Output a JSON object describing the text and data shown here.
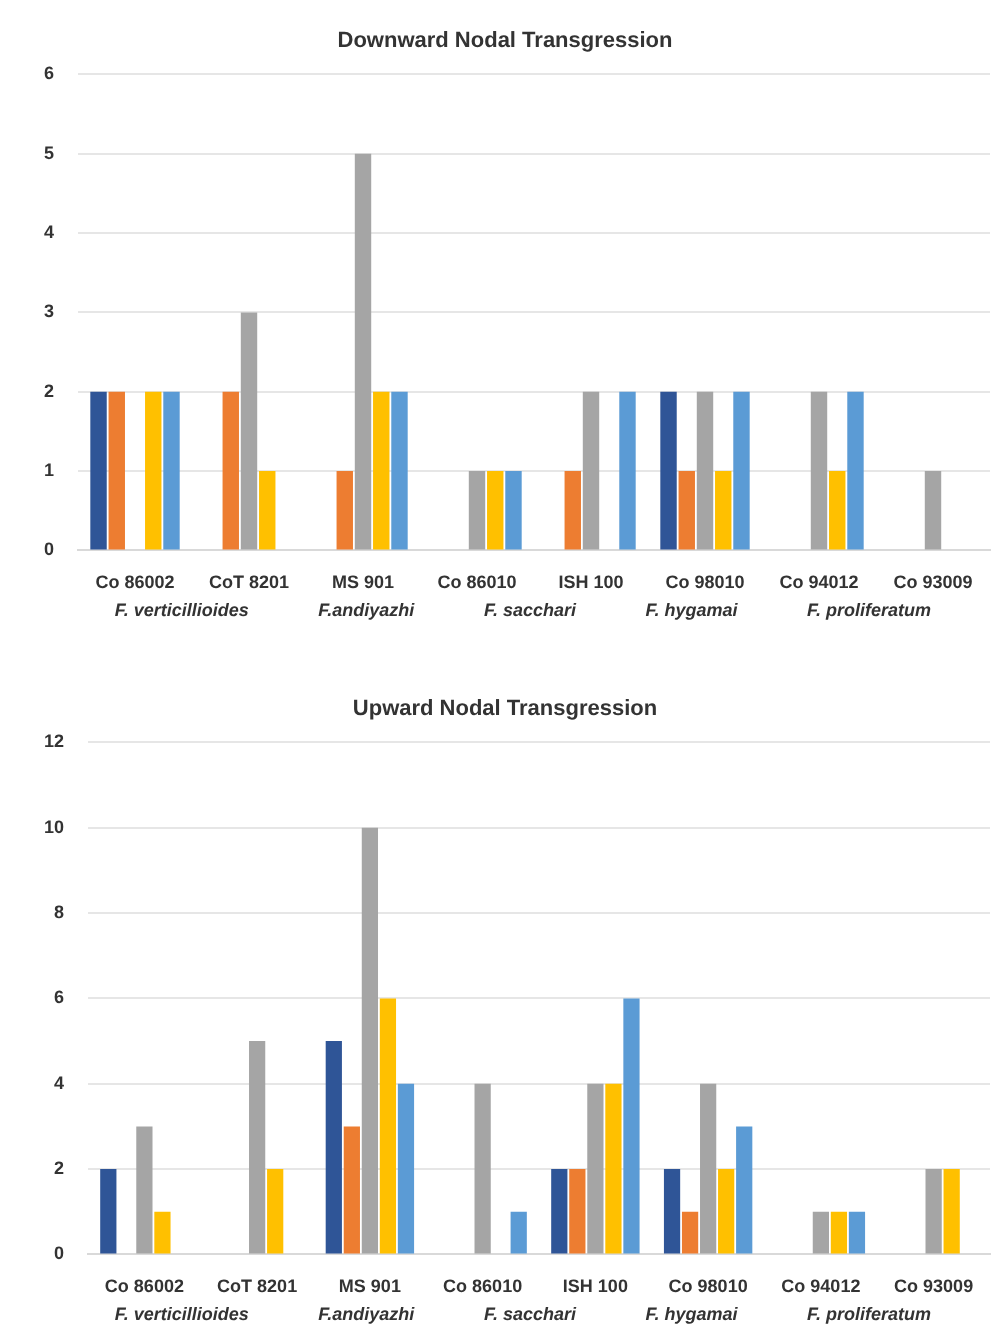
{
  "chart_data": [
    {
      "type": "bar",
      "title": "Downward Nodal Transgression",
      "categories": [
        "Co 86002",
        "CoT 8201",
        "MS 901",
        "Co 86010",
        "ISH 100",
        "Co 98010",
        "Co 94012",
        "Co 93009"
      ],
      "series": [
        {
          "color": "#2f5597",
          "values": [
            2,
            0,
            0,
            0,
            0,
            2,
            0,
            0
          ]
        },
        {
          "color": "#ed7d31",
          "values": [
            2,
            2,
            1,
            0,
            1,
            1,
            0,
            0
          ]
        },
        {
          "color": "#a5a5a5",
          "values": [
            0,
            3,
            5,
            1,
            2,
            2,
            2,
            1
          ]
        },
        {
          "color": "#ffc000",
          "values": [
            2,
            1,
            2,
            1,
            0,
            1,
            1,
            0
          ]
        },
        {
          "color": "#5b9bd5",
          "values": [
            2,
            0,
            2,
            1,
            2,
            2,
            2,
            0
          ]
        }
      ],
      "ylim": [
        0,
        6
      ],
      "yticks": [
        0,
        1,
        2,
        3,
        4,
        5,
        6
      ],
      "grid": "y",
      "legend": false,
      "annotations": [
        "F. verticillioides",
        "F.andiyazhi",
        "F. sacchari",
        "F. hygamai",
        "F. proliferatum"
      ]
    },
    {
      "type": "bar",
      "title": "Upward Nodal Transgression",
      "categories": [
        "Co 86002",
        "CoT 8201",
        "MS 901",
        "Co 86010",
        "ISH 100",
        "Co 98010",
        "Co 94012",
        "Co 93009"
      ],
      "series": [
        {
          "color": "#2f5597",
          "values": [
            2,
            0,
            5,
            0,
            2,
            2,
            0,
            0
          ]
        },
        {
          "color": "#ed7d31",
          "values": [
            0,
            0,
            3,
            0,
            2,
            1,
            0,
            0
          ]
        },
        {
          "color": "#a5a5a5",
          "values": [
            3,
            5,
            10,
            4,
            4,
            4,
            1,
            2
          ]
        },
        {
          "color": "#ffc000",
          "values": [
            1,
            2,
            6,
            0,
            4,
            2,
            1,
            2
          ]
        },
        {
          "color": "#5b9bd5",
          "values": [
            0,
            0,
            4,
            1,
            6,
            3,
            1,
            0
          ]
        }
      ],
      "ylim": [
        0,
        12
      ],
      "yticks": [
        0,
        2,
        4,
        6,
        8,
        10,
        12
      ],
      "grid": "y",
      "legend": false,
      "annotations": [
        "F. verticillioides",
        "F.andiyazhi",
        "F. sacchari",
        "F. hygamai",
        "F. proliferatum"
      ]
    }
  ]
}
